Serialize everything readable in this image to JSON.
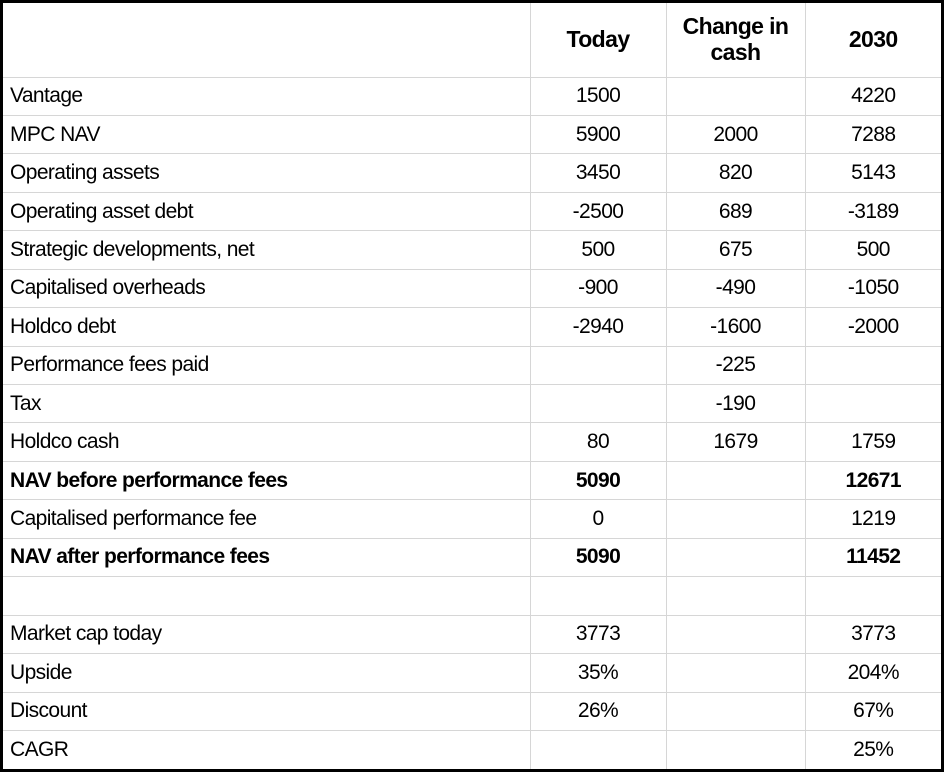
{
  "table": {
    "columns": [
      "",
      "Today",
      "Change in cash",
      "2030"
    ],
    "rows": [
      {
        "label": "Vantage",
        "today": "1500",
        "change": "",
        "y2030": "4220",
        "bold": false
      },
      {
        "label": "MPC NAV",
        "today": "5900",
        "change": "2000",
        "y2030": "7288",
        "bold": false
      },
      {
        "label": "Operating assets",
        "today": "3450",
        "change": "820",
        "y2030": "5143",
        "bold": false
      },
      {
        "label": "Operating asset debt",
        "today": "-2500",
        "change": "689",
        "y2030": "-3189",
        "bold": false
      },
      {
        "label": "Strategic developments, net",
        "today": "500",
        "change": "675",
        "y2030": "500",
        "bold": false
      },
      {
        "label": "Capitalised overheads",
        "today": "-900",
        "change": "-490",
        "y2030": "-1050",
        "bold": false
      },
      {
        "label": "Holdco debt",
        "today": "-2940",
        "change": "-1600",
        "y2030": "-2000",
        "bold": false
      },
      {
        "label": "Performance fees paid",
        "today": "",
        "change": "-225",
        "y2030": "",
        "bold": false
      },
      {
        "label": "Tax",
        "today": "",
        "change": "-190",
        "y2030": "",
        "bold": false
      },
      {
        "label": "Holdco cash",
        "today": "80",
        "change": "1679",
        "y2030": "1759",
        "bold": false
      },
      {
        "label": "NAV before performance fees",
        "today": "5090",
        "change": "",
        "y2030": "12671",
        "bold": true
      },
      {
        "label": "Capitalised performance fee",
        "today": "0",
        "change": "",
        "y2030": "1219",
        "bold": false
      },
      {
        "label": "NAV after performance fees",
        "today": "5090",
        "change": "",
        "y2030": "11452",
        "bold": true
      },
      {
        "label": "",
        "today": "",
        "change": "",
        "y2030": "",
        "bold": false
      },
      {
        "label": "Market cap today",
        "today": "3773",
        "change": "",
        "y2030": "3773",
        "bold": false
      },
      {
        "label": "Upside",
        "today": "35%",
        "change": "",
        "y2030": "204%",
        "bold": false
      },
      {
        "label": "Discount",
        "today": "26%",
        "change": "",
        "y2030": "67%",
        "bold": false
      },
      {
        "label": "CAGR",
        "today": "",
        "change": "",
        "y2030": "25%",
        "bold": false
      }
    ]
  },
  "colors": {
    "frame_border": "#000000",
    "gridline": "#d6d6d6",
    "text": "#000000",
    "background": "#ffffff"
  }
}
